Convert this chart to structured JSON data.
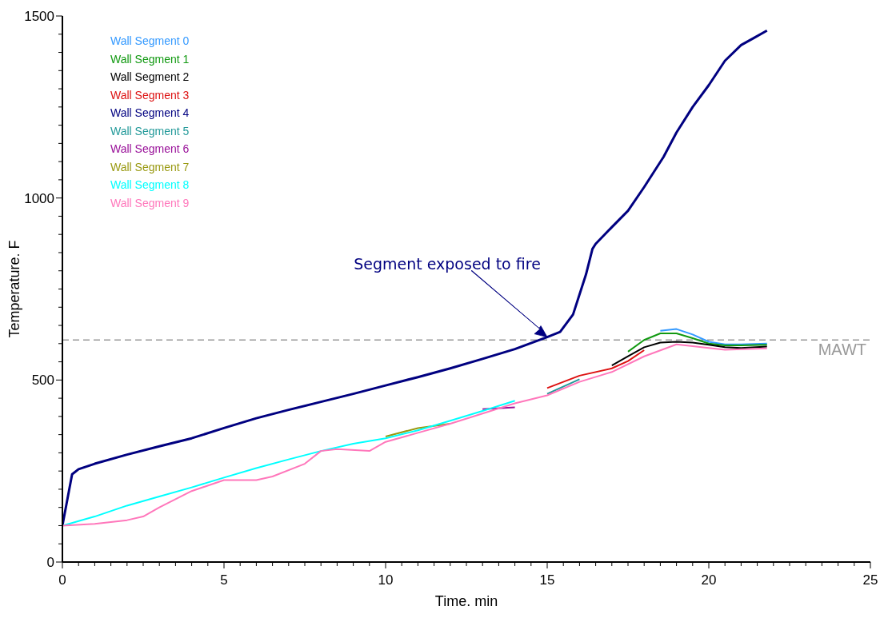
{
  "chart_data": {
    "type": "line",
    "xlabel": "Time. min",
    "ylabel": "Temperature. F",
    "xlim": [
      0,
      25
    ],
    "ylim": [
      0,
      1500
    ],
    "xticks": [
      0,
      {
        "value": 0.5,
        "label": null
      },
      {
        "value": 1,
        "label": null
      },
      {
        "value": 1.5,
        "label": null
      },
      {
        "value": 2,
        "label": null
      },
      {
        "value": 2.5,
        "label": null
      },
      {
        "value": 3,
        "label": null
      },
      {
        "value": 3.5,
        "label": null
      },
      {
        "value": 4,
        "label": null
      },
      {
        "value": 4.5,
        "label": null
      },
      5,
      {
        "value": 5.5,
        "label": null
      },
      {
        "value": 6,
        "label": null
      },
      {
        "value": 6.5,
        "label": null
      },
      {
        "value": 7,
        "label": null
      },
      {
        "value": 7.5,
        "label": null
      },
      {
        "value": 8,
        "label": null
      },
      {
        "value": 8.5,
        "label": null
      },
      {
        "value": 9,
        "label": null
      },
      {
        "value": 9.5,
        "label": null
      },
      10,
      {
        "value": 10.5,
        "label": null
      },
      {
        "value": 11,
        "label": null
      },
      {
        "value": 11.5,
        "label": null
      },
      {
        "value": 12,
        "label": null
      },
      {
        "value": 12.5,
        "label": null
      },
      {
        "value": 13,
        "label": null
      },
      {
        "value": 13.5,
        "label": null
      },
      {
        "value": 14,
        "label": null
      },
      {
        "value": 14.5,
        "label": null
      },
      15,
      {
        "value": 15.5,
        "label": null
      },
      {
        "value": 16,
        "label": null
      },
      {
        "value": 16.5,
        "label": null
      },
      {
        "value": 17,
        "label": null
      },
      {
        "value": 17.5,
        "label": null
      },
      {
        "value": 18,
        "label": null
      },
      {
        "value": 18.5,
        "label": null
      },
      {
        "value": 19,
        "label": null
      },
      {
        "value": 19.5,
        "label": null
      },
      20,
      {
        "value": 20.5,
        "label": null
      },
      {
        "value": 21,
        "label": null
      },
      {
        "value": 21.5,
        "label": null
      },
      {
        "value": 22,
        "label": null
      },
      {
        "value": 22.5,
        "label": null
      },
      {
        "value": 23,
        "label": null
      },
      {
        "value": 23.5,
        "label": null
      },
      {
        "value": 24,
        "label": null
      },
      {
        "value": 24.5,
        "label": null
      },
      25
    ],
    "yticks": [
      0,
      {
        "value": 50,
        "label": null
      },
      {
        "value": 100,
        "label": null
      },
      {
        "value": 150,
        "label": null
      },
      {
        "value": 200,
        "label": null
      },
      {
        "value": 250,
        "label": null
      },
      {
        "value": 300,
        "label": null
      },
      {
        "value": 350,
        "label": null
      },
      {
        "value": 400,
        "label": null
      },
      {
        "value": 450,
        "label": null
      },
      500,
      {
        "value": 550,
        "label": null
      },
      {
        "value": 600,
        "label": null
      },
      {
        "value": 650,
        "label": null
      },
      {
        "value": 700,
        "label": null
      },
      {
        "value": 750,
        "label": null
      },
      {
        "value": 800,
        "label": null
      },
      {
        "value": 850,
        "label": null
      },
      {
        "value": 900,
        "label": null
      },
      {
        "value": 950,
        "label": null
      },
      1000,
      {
        "value": 1050,
        "label": null
      },
      {
        "value": 1100,
        "label": null
      },
      {
        "value": 1150,
        "label": null
      },
      {
        "value": 1200,
        "label": null
      },
      {
        "value": 1250,
        "label": null
      },
      {
        "value": 1300,
        "label": null
      },
      {
        "value": 1350,
        "label": null
      },
      {
        "value": 1400,
        "label": null
      },
      {
        "value": 1450,
        "label": null
      },
      1500
    ],
    "grid": false,
    "legend": "top left",
    "marker": "none",
    "line_style": "solid",
    "x": [
      0,
      1,
      2,
      3,
      4,
      5,
      6,
      7,
      8,
      9,
      10,
      11,
      12,
      13,
      14,
      15,
      16,
      17,
      17.5,
      18,
      18.5,
      19,
      19.5,
      20,
      20.5,
      21,
      21.8
    ],
    "series": [
      {
        "name": "Wall Segment 0",
        "color": "#3399ff",
        "values": [
          null,
          null,
          null,
          null,
          null,
          null,
          null,
          null,
          null,
          null,
          null,
          null,
          null,
          null,
          null,
          null,
          null,
          null,
          null,
          null,
          635,
          640,
          625,
          605,
          598,
          598,
          600
        ]
      },
      {
        "name": "Wall Segment 1",
        "color": "#119911",
        "values": [
          null,
          null,
          null,
          null,
          null,
          null,
          null,
          null,
          null,
          null,
          null,
          null,
          null,
          null,
          null,
          null,
          null,
          null,
          578,
          610,
          628,
          628,
          615,
          600,
          595,
          595,
          597
        ]
      },
      {
        "name": "Wall Segment 2",
        "color": "#000000",
        "values": [
          null,
          null,
          null,
          null,
          null,
          null,
          null,
          null,
          null,
          null,
          null,
          null,
          null,
          null,
          null,
          null,
          null,
          540,
          565,
          590,
          603,
          605,
          603,
          597,
          590,
          588,
          592
        ]
      },
      {
        "name": "Wall Segment 3",
        "color": "#dd1111",
        "values": [
          null,
          null,
          null,
          null,
          null,
          null,
          null,
          null,
          null,
          null,
          null,
          null,
          null,
          null,
          null,
          478,
          512,
          532,
          552,
          582,
          null,
          null,
          null,
          null,
          null,
          null,
          null
        ]
      },
      {
        "name": "Wall Segment 4",
        "color": "#000080",
        "x": [
          0,
          0.3,
          0.5,
          1,
          2,
          3,
          4,
          5,
          6,
          7,
          8,
          9,
          10,
          11,
          12,
          13,
          14,
          15,
          15.4,
          15.8,
          16.2,
          16.4,
          16.5,
          17,
          17.5,
          18,
          18.6,
          19,
          19.5,
          20,
          20.5,
          21,
          21.4,
          21.8
        ],
        "values": [
          100,
          241,
          255,
          270,
          295,
          318,
          340,
          368,
          395,
          418,
          440,
          462,
          485,
          508,
          532,
          558,
          585,
          618,
          632,
          680,
          790,
          860,
          874,
          920,
          965,
          1030,
          1113,
          1180,
          1250,
          1310,
          1377,
          1420,
          1440,
          1460
        ]
      },
      {
        "name": "Wall Segment 5",
        "color": "#229999",
        "values": [
          null,
          null,
          null,
          null,
          null,
          null,
          null,
          null,
          null,
          null,
          null,
          null,
          null,
          null,
          null,
          462,
          502,
          null,
          null,
          null,
          null,
          null,
          null,
          null,
          null,
          null,
          null
        ]
      },
      {
        "name": "Wall Segment 6",
        "color": "#991199",
        "values": [
          null,
          null,
          null,
          null,
          null,
          null,
          null,
          null,
          null,
          null,
          null,
          null,
          null,
          420,
          425,
          null,
          null,
          null,
          null,
          null,
          null,
          null,
          null,
          null,
          null,
          null,
          null
        ]
      },
      {
        "name": "Wall Segment 7",
        "color": "#999911",
        "values": [
          null,
          null,
          null,
          null,
          null,
          null,
          null,
          null,
          null,
          null,
          345,
          368,
          380,
          null,
          null,
          null,
          null,
          null,
          null,
          null,
          null,
          null,
          null,
          null,
          null,
          null,
          null
        ]
      },
      {
        "name": "Wall Segment 8",
        "color": "#00ffff",
        "values": [
          100,
          125,
          155,
          180,
          205,
          232,
          258,
          282,
          305,
          325,
          340,
          362,
          388,
          415,
          443,
          null,
          null,
          null,
          null,
          null,
          null,
          null,
          null,
          null,
          null,
          null,
          null
        ]
      },
      {
        "name": "Wall Segment 9",
        "color": "#ff77bb",
        "x": [
          0,
          1,
          2,
          2.5,
          3,
          4,
          5,
          6,
          6.5,
          7.5,
          8,
          8.5,
          9.5,
          10,
          11,
          12,
          13,
          14,
          15,
          16,
          17,
          18,
          19,
          20,
          20.5,
          21.8
        ],
        "values": [
          100,
          105,
          115,
          125,
          150,
          195,
          225,
          225,
          235,
          270,
          305,
          310,
          305,
          330,
          355,
          380,
          408,
          436,
          458,
          495,
          522,
          565,
          598,
          588,
          583,
          587
        ]
      }
    ],
    "ref_lines": [
      {
        "axis": "y",
        "value": 610,
        "label": "MAWT",
        "color": "#999999",
        "line_style": "dashed"
      }
    ],
    "annotations": [
      "Segment exposed to fire"
    ]
  }
}
